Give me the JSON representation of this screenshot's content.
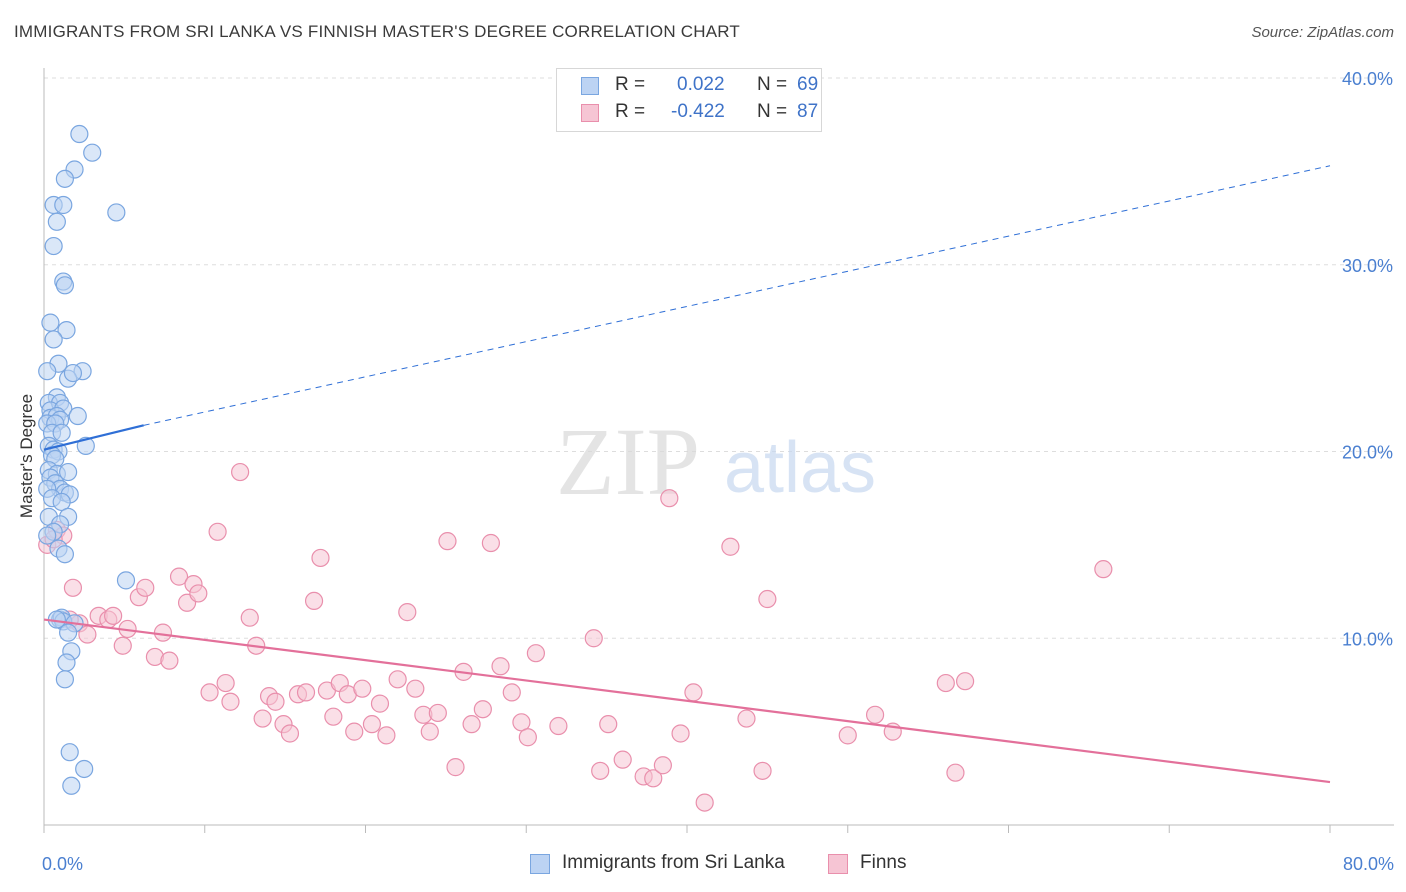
{
  "header": {
    "title": "IMMIGRANTS FROM SRI LANKA VS FINNISH MASTER'S DEGREE CORRELATION CHART",
    "source": "Source: ZipAtlas.com"
  },
  "watermark": {
    "zip": "ZIP",
    "atlas": "atlas"
  },
  "colors": {
    "blue_fill": "#bcd3f3",
    "blue_stroke": "#7aa6e0",
    "blue_line": "#2f6fd6",
    "pink_fill": "#f6c5d4",
    "pink_stroke": "#e98fac",
    "pink_line": "#e3709a",
    "tick_text": "#4a7fd0",
    "grid": "#dddddd"
  },
  "legend": {
    "rows": [
      {
        "r_label": "R =",
        "r_value": "0.022",
        "n_label": "N =",
        "n_value": "69"
      },
      {
        "r_label": "R =",
        "r_value": "-0.422",
        "n_label": "N =",
        "n_value": "87"
      }
    ]
  },
  "bottom_legend": {
    "items": [
      {
        "label": "Immigrants from Sri Lanka"
      },
      {
        "label": "Finns"
      }
    ]
  },
  "chart_data": {
    "type": "scatter",
    "title": "IMMIGRANTS FROM SRI LANKA VS FINNISH MASTER'S DEGREE CORRELATION CHART",
    "xlabel": "",
    "ylabel": "Master's Degree",
    "xlim": [
      0,
      80
    ],
    "ylim": [
      0,
      40
    ],
    "x_tick_labels": [
      "0.0%",
      "80.0%"
    ],
    "y_ticks": [
      10,
      20,
      30,
      40
    ],
    "y_tick_labels": [
      "10.0%",
      "20.0%",
      "30.0%",
      "40.0%"
    ],
    "grid": true,
    "series": [
      {
        "name": "Immigrants from Sri Lanka",
        "color": "blue",
        "R": 0.022,
        "N": 69,
        "trend": {
          "solid": [
            [
              0,
              20.1
            ],
            [
              6.2,
              21.4
            ]
          ],
          "dashed": [
            [
              6.2,
              21.4
            ],
            [
              80,
              35.3
            ]
          ]
        },
        "points": [
          [
            2.2,
            37.0
          ],
          [
            3.0,
            36.0
          ],
          [
            1.9,
            35.1
          ],
          [
            1.3,
            34.6
          ],
          [
            0.6,
            33.2
          ],
          [
            1.2,
            33.2
          ],
          [
            4.5,
            32.8
          ],
          [
            0.8,
            32.3
          ],
          [
            0.6,
            31.0
          ],
          [
            1.2,
            29.1
          ],
          [
            1.3,
            28.9
          ],
          [
            0.4,
            26.9
          ],
          [
            1.4,
            26.5
          ],
          [
            0.6,
            26.0
          ],
          [
            0.9,
            24.7
          ],
          [
            0.2,
            24.3
          ],
          [
            2.4,
            24.3
          ],
          [
            1.5,
            23.9
          ],
          [
            1.8,
            24.2
          ],
          [
            0.8,
            22.9
          ],
          [
            0.3,
            22.6
          ],
          [
            1.0,
            22.6
          ],
          [
            0.4,
            22.2
          ],
          [
            1.2,
            22.3
          ],
          [
            2.1,
            21.9
          ],
          [
            0.4,
            21.8
          ],
          [
            0.8,
            21.9
          ],
          [
            1.0,
            21.7
          ],
          [
            0.2,
            21.5
          ],
          [
            0.7,
            21.5
          ],
          [
            0.5,
            21.0
          ],
          [
            1.1,
            21.0
          ],
          [
            2.6,
            20.3
          ],
          [
            0.3,
            20.3
          ],
          [
            0.6,
            20.1
          ],
          [
            0.9,
            20.0
          ],
          [
            0.5,
            19.8
          ],
          [
            0.7,
            19.6
          ],
          [
            0.3,
            19.0
          ],
          [
            0.8,
            18.8
          ],
          [
            1.5,
            18.9
          ],
          [
            0.4,
            18.6
          ],
          [
            0.7,
            18.3
          ],
          [
            1.0,
            18.0
          ],
          [
            0.2,
            18.0
          ],
          [
            1.3,
            17.8
          ],
          [
            0.5,
            17.5
          ],
          [
            1.6,
            17.7
          ],
          [
            1.1,
            17.3
          ],
          [
            0.3,
            16.5
          ],
          [
            1.5,
            16.5
          ],
          [
            1.0,
            16.1
          ],
          [
            0.6,
            15.7
          ],
          [
            0.2,
            15.5
          ],
          [
            0.9,
            14.8
          ],
          [
            1.3,
            14.5
          ],
          [
            5.1,
            13.1
          ],
          [
            1.0,
            11.0
          ],
          [
            1.1,
            11.1
          ],
          [
            1.2,
            10.9
          ],
          [
            1.9,
            10.8
          ],
          [
            1.5,
            10.3
          ],
          [
            1.7,
            9.3
          ],
          [
            1.4,
            8.7
          ],
          [
            1.3,
            7.8
          ],
          [
            1.6,
            3.9
          ],
          [
            2.5,
            3.0
          ],
          [
            1.7,
            2.1
          ],
          [
            0.8,
            11.0
          ]
        ]
      },
      {
        "name": "Finns",
        "color": "pink",
        "R": -0.422,
        "N": 87,
        "trend": {
          "solid": [
            [
              0,
              11.0
            ],
            [
              80,
              2.3
            ]
          ]
        },
        "points": [
          [
            0.2,
            15.0
          ],
          [
            0.8,
            15.8
          ],
          [
            1.2,
            15.5
          ],
          [
            0.6,
            15.3
          ],
          [
            1.8,
            12.7
          ],
          [
            2.2,
            10.8
          ],
          [
            2.7,
            10.2
          ],
          [
            3.4,
            11.2
          ],
          [
            4.0,
            11.0
          ],
          [
            4.3,
            11.2
          ],
          [
            4.9,
            9.6
          ],
          [
            5.2,
            10.5
          ],
          [
            5.9,
            12.2
          ],
          [
            6.3,
            12.7
          ],
          [
            6.9,
            9.0
          ],
          [
            7.4,
            10.3
          ],
          [
            7.8,
            8.8
          ],
          [
            8.4,
            13.3
          ],
          [
            8.9,
            11.9
          ],
          [
            9.3,
            12.9
          ],
          [
            9.6,
            12.4
          ],
          [
            10.3,
            7.1
          ],
          [
            10.8,
            15.7
          ],
          [
            11.3,
            7.6
          ],
          [
            11.6,
            6.6
          ],
          [
            12.2,
            18.9
          ],
          [
            12.8,
            11.1
          ],
          [
            13.2,
            9.6
          ],
          [
            13.6,
            5.7
          ],
          [
            14.0,
            6.9
          ],
          [
            14.4,
            6.6
          ],
          [
            14.9,
            5.4
          ],
          [
            15.3,
            4.9
          ],
          [
            15.8,
            7.0
          ],
          [
            16.3,
            7.1
          ],
          [
            16.8,
            12.0
          ],
          [
            17.2,
            14.3
          ],
          [
            17.6,
            7.2
          ],
          [
            18.0,
            5.8
          ],
          [
            18.4,
            7.6
          ],
          [
            18.9,
            7.0
          ],
          [
            19.3,
            5.0
          ],
          [
            19.8,
            7.3
          ],
          [
            20.4,
            5.4
          ],
          [
            20.9,
            6.5
          ],
          [
            21.3,
            4.8
          ],
          [
            22.0,
            7.8
          ],
          [
            22.6,
            11.4
          ],
          [
            23.1,
            7.3
          ],
          [
            23.6,
            5.9
          ],
          [
            24.0,
            5.0
          ],
          [
            24.5,
            6.0
          ],
          [
            25.1,
            15.2
          ],
          [
            25.6,
            3.1
          ],
          [
            26.1,
            8.2
          ],
          [
            26.6,
            5.4
          ],
          [
            27.3,
            6.2
          ],
          [
            27.8,
            15.1
          ],
          [
            28.4,
            8.5
          ],
          [
            29.1,
            7.1
          ],
          [
            29.7,
            5.5
          ],
          [
            30.1,
            4.7
          ],
          [
            30.6,
            9.2
          ],
          [
            32.0,
            5.3
          ],
          [
            34.2,
            10.0
          ],
          [
            34.6,
            2.9
          ],
          [
            35.1,
            5.4
          ],
          [
            36.0,
            3.5
          ],
          [
            37.3,
            2.6
          ],
          [
            37.9,
            2.5
          ],
          [
            38.5,
            3.2
          ],
          [
            38.9,
            17.5
          ],
          [
            39.6,
            4.9
          ],
          [
            40.4,
            7.1
          ],
          [
            41.1,
            1.2
          ],
          [
            42.7,
            14.9
          ],
          [
            43.7,
            5.7
          ],
          [
            44.7,
            2.9
          ],
          [
            45.0,
            12.1
          ],
          [
            50.0,
            4.8
          ],
          [
            51.7,
            5.9
          ],
          [
            52.8,
            5.0
          ],
          [
            56.1,
            7.6
          ],
          [
            57.3,
            7.7
          ],
          [
            56.7,
            2.8
          ],
          [
            65.9,
            13.7
          ],
          [
            1.6,
            11.0
          ]
        ]
      }
    ]
  }
}
